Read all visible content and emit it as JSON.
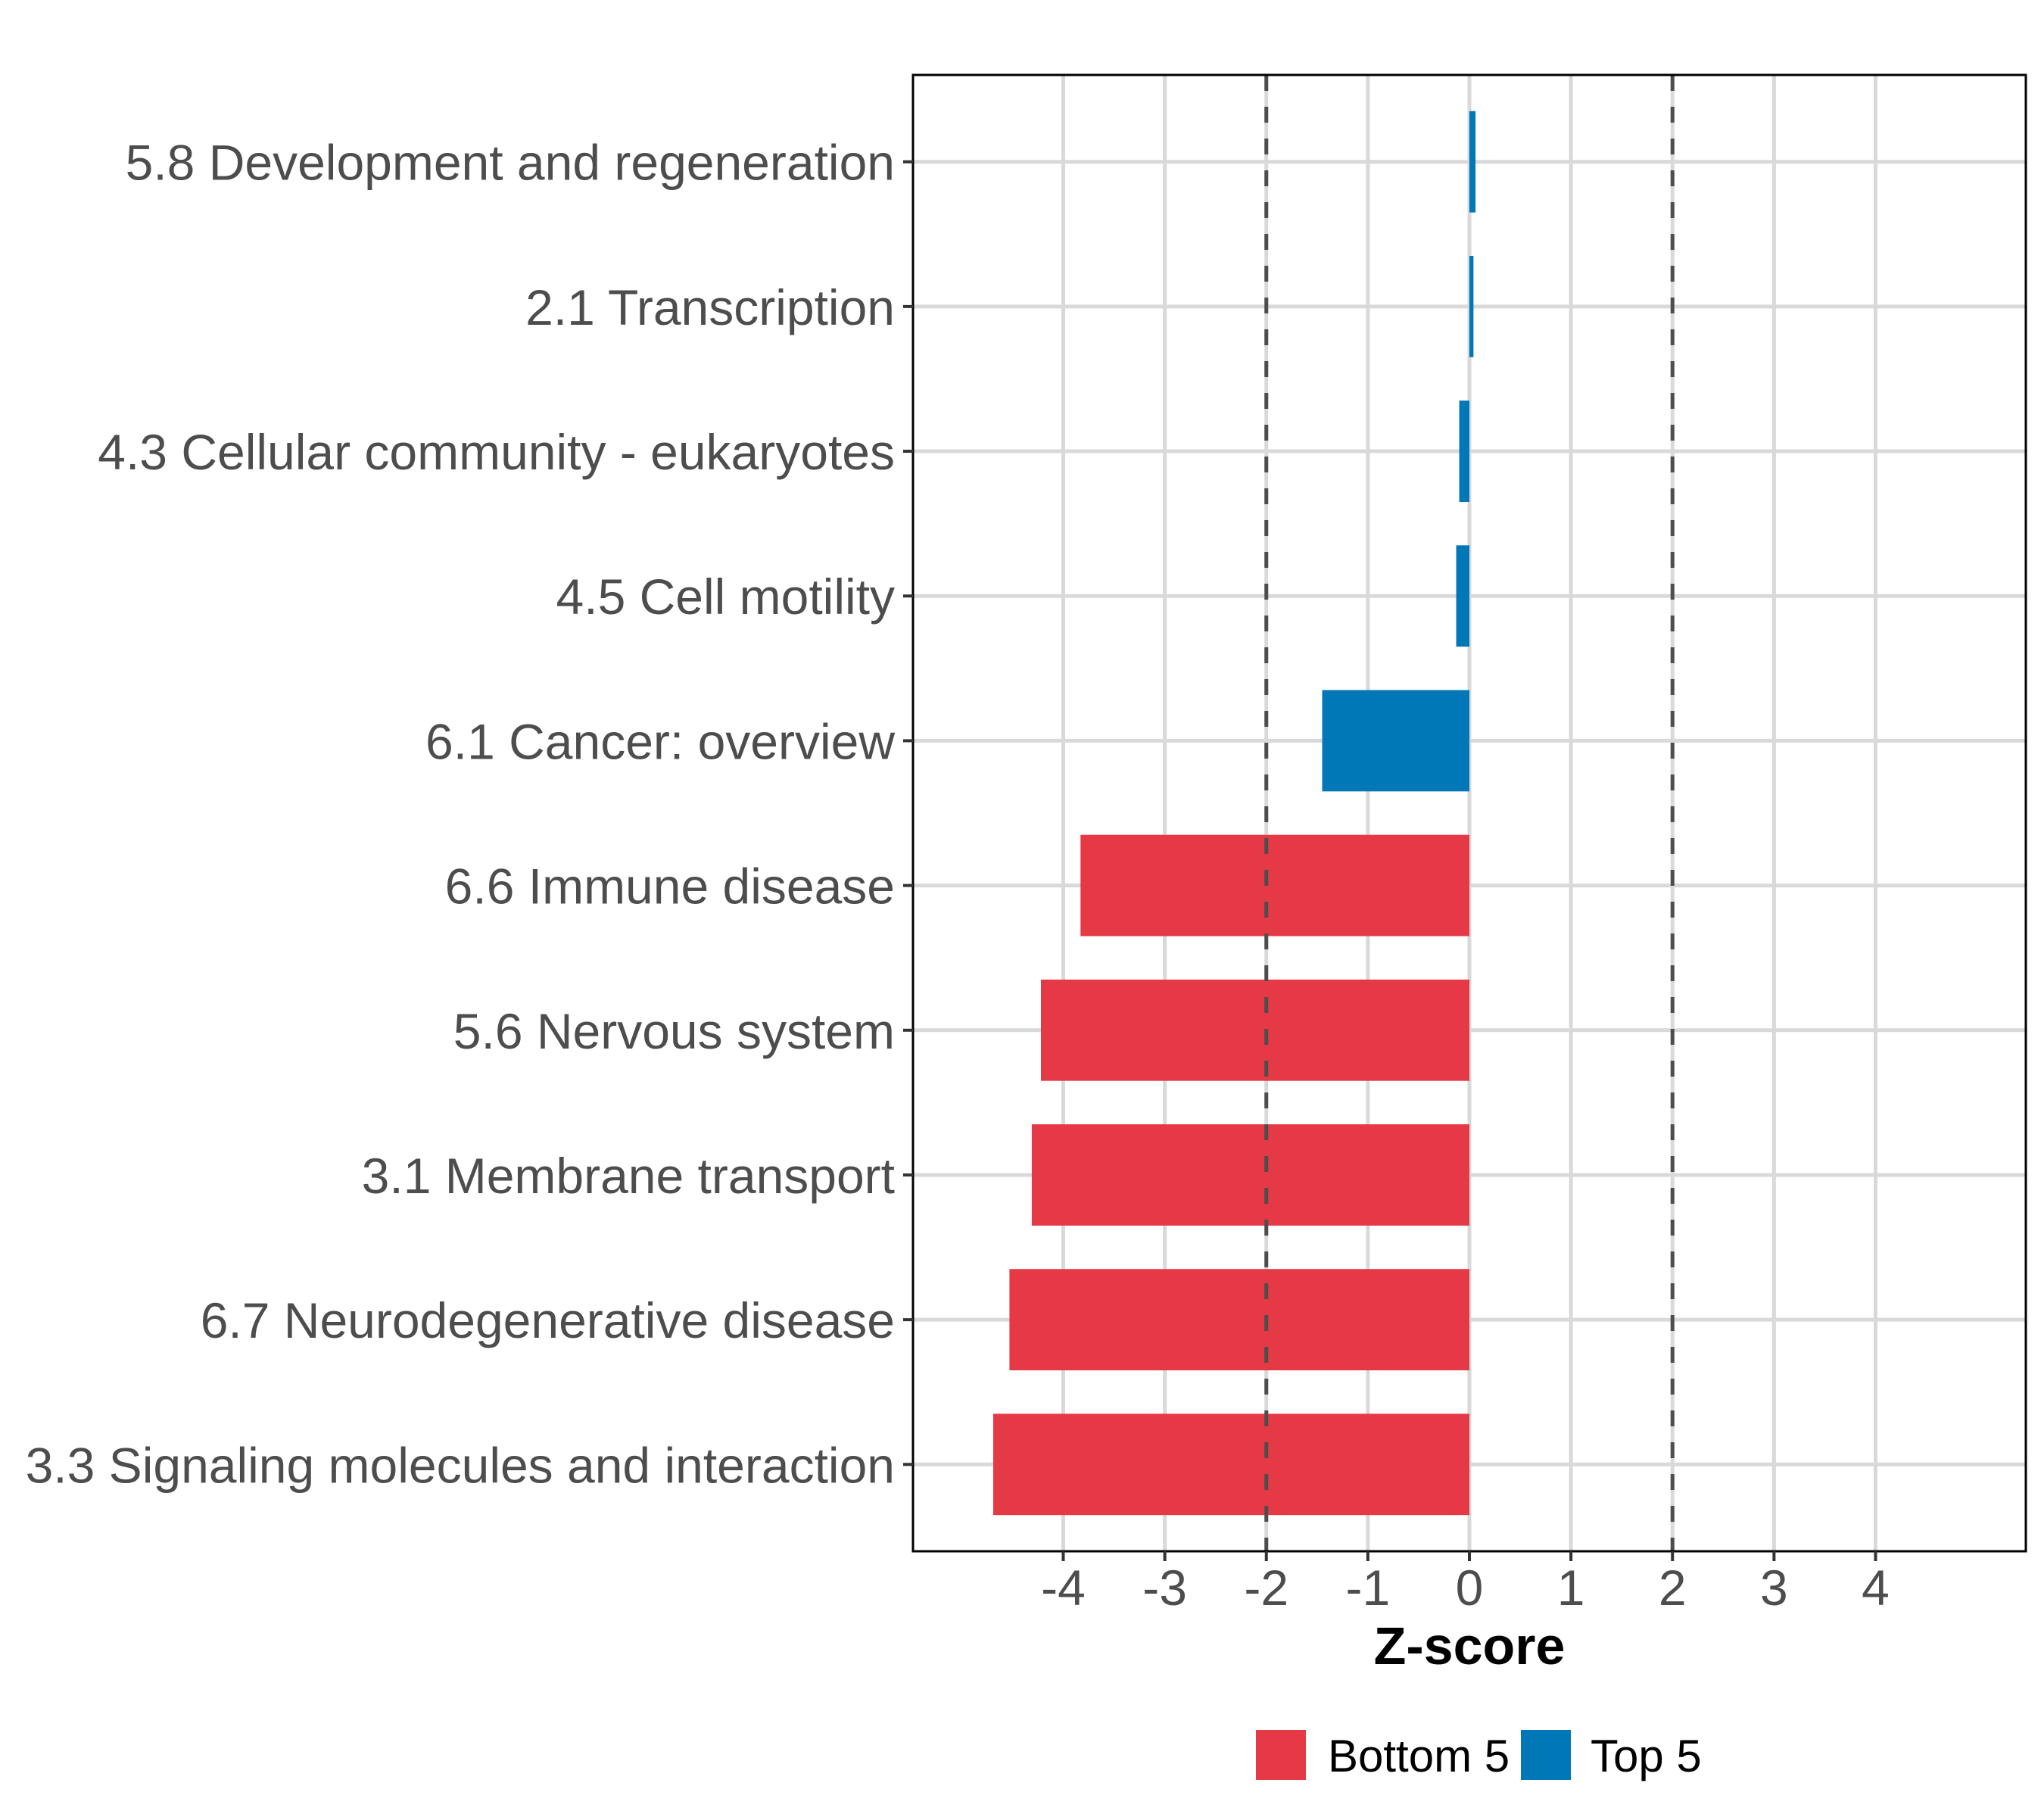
{
  "chart_data": {
    "type": "bar",
    "orientation": "horizontal",
    "title": "",
    "xlabel": "Z-score",
    "ylabel": "",
    "xlim": [
      -5.48,
      5.48
    ],
    "xticks": [
      -4,
      -3,
      -2,
      -1,
      0,
      1,
      2,
      3,
      4
    ],
    "xtick_labels": [
      "-4",
      "-3",
      "-2",
      "-1",
      "0",
      "1",
      "2",
      "3",
      "4"
    ],
    "reference_lines": [
      -2,
      2
    ],
    "grid": true,
    "legend_position": "bottom",
    "categories": [
      "5.8 Development and regeneration",
      "2.1 Transcription",
      "4.3 Cellular community - eukaryotes",
      "4.5 Cell motility",
      "6.1 Cancer: overview",
      "6.6 Immune disease",
      "5.6 Nervous system",
      "3.1 Membrane transport",
      "6.7 Neurodegenerative disease",
      "3.3 Signaling molecules and interaction"
    ],
    "values": [
      0.06,
      0.04,
      -0.1,
      -0.13,
      -1.45,
      -3.83,
      -4.22,
      -4.31,
      -4.53,
      -4.69
    ],
    "groups": [
      "Top 5",
      "Top 5",
      "Top 5",
      "Top 5",
      "Top 5",
      "Bottom 5",
      "Bottom 5",
      "Bottom 5",
      "Bottom 5",
      "Bottom 5"
    ],
    "series": [
      {
        "name": "Bottom 5",
        "color": "#E63946"
      },
      {
        "name": "Top 5",
        "color": "#0077B6"
      }
    ]
  }
}
